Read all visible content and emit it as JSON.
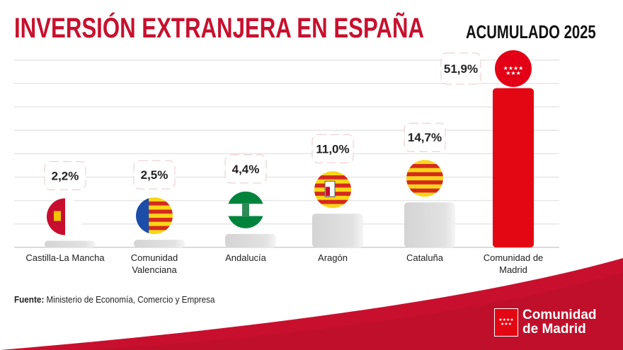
{
  "header": {
    "title": "INVERSIÓN EXTRANJERA EN ESPAÑA",
    "subtitle": "ACUMULADO 2025"
  },
  "chart_data": {
    "type": "bar",
    "categories": [
      "Castilla-La Mancha",
      "Comunidad Valenciana",
      "Andalucía",
      "Aragón",
      "Cataluña",
      "Comunidad de Madrid"
    ],
    "category_lines": [
      [
        "Castilla-La Mancha"
      ],
      [
        "Comunidad",
        "Valenciana"
      ],
      [
        "Andalucía"
      ],
      [
        "Aragón"
      ],
      [
        "Cataluña"
      ],
      [
        "Comunidad de",
        "Madrid"
      ]
    ],
    "values": [
      2.2,
      2.5,
      4.4,
      11.0,
      14.7,
      51.9
    ],
    "data_labels": [
      "2,2%",
      "2,5%",
      "4,4%",
      "11,0%",
      "14,7%",
      "51,9%"
    ],
    "flags": [
      "castilla-la-mancha-flag",
      "valencia-flag",
      "andalucia-flag",
      "aragon-flag",
      "cataluna-flag",
      "madrid-flag"
    ],
    "bar_colors": {
      "default": "#dcdcdc",
      "highlight": "#e30613"
    },
    "highlight": "Comunidad de Madrid",
    "unit": "%",
    "grid": true
  },
  "footer": {
    "source_label": "Fuente:",
    "source_text": " Ministerio de Economía, Comercio y Empresa"
  },
  "logo": {
    "line1": "Comunidad",
    "line2": "de Madrid",
    "stars": "★★★★ ★★★"
  },
  "colors": {
    "brand_red": "#c8102e",
    "bar_red": "#e30613",
    "bar_gray": "#dcdcdc"
  }
}
